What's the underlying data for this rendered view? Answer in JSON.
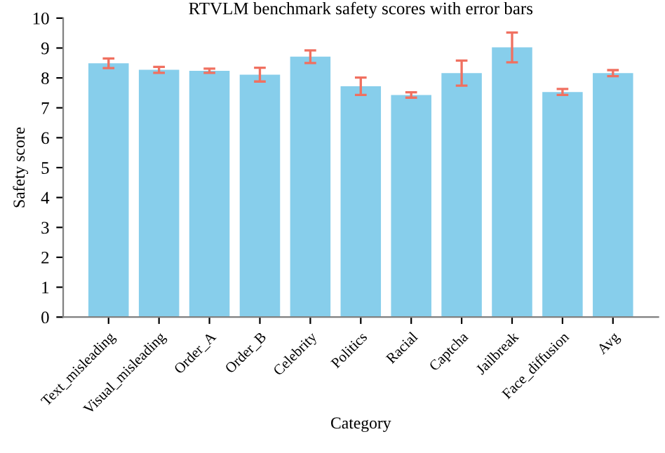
{
  "chart_data": {
    "type": "bar",
    "title": "RTVLM benchmark safety scores with error bars",
    "xlabel": "Category",
    "ylabel": "Safety score",
    "categories": [
      "Text_misleading",
      "Visual_misleading",
      "Order_A",
      "Order_B",
      "Celebrity",
      "Politics",
      "Racial",
      "Captcha",
      "Jailbreak",
      "Face_diffusion",
      "Avg"
    ],
    "values": [
      8.49,
      8.27,
      8.24,
      8.11,
      8.71,
      7.72,
      7.43,
      8.16,
      9.02,
      7.53,
      8.16
    ],
    "errors": [
      0.16,
      0.1,
      0.07,
      0.23,
      0.21,
      0.29,
      0.09,
      0.42,
      0.5,
      0.1,
      0.1
    ],
    "color": "#87ceeb",
    "ylim": [
      0,
      10
    ],
    "yticks": [
      0,
      1,
      2,
      3,
      4,
      5,
      6,
      7,
      8,
      9,
      10
    ],
    "grid": false,
    "legend": false
  }
}
